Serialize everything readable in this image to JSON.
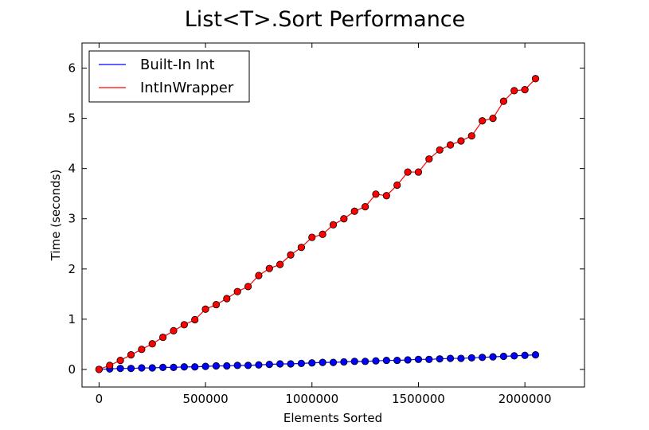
{
  "chart_data": {
    "type": "line",
    "title": "List<T>.Sort Performance",
    "xlabel": "Elements Sorted",
    "ylabel": "Time (seconds)",
    "xlim": [
      -80000,
      2280000
    ],
    "ylim": [
      -0.35,
      6.5
    ],
    "xticks": [
      0,
      500000,
      1000000,
      1500000,
      2000000
    ],
    "yticks": [
      0,
      1,
      2,
      3,
      4,
      5,
      6
    ],
    "grid": false,
    "legend_position": "top-left",
    "x": [
      0,
      50000,
      100000,
      150000,
      200000,
      250000,
      300000,
      350000,
      400000,
      450000,
      500000,
      550000,
      600000,
      650000,
      700000,
      750000,
      800000,
      850000,
      900000,
      950000,
      1000000,
      1050000,
      1100000,
      1150000,
      1200000,
      1250000,
      1300000,
      1350000,
      1400000,
      1450000,
      1500000,
      1550000,
      1600000,
      1650000,
      1700000,
      1750000,
      1800000,
      1850000,
      1900000,
      1950000,
      2000000,
      2050000
    ],
    "series": [
      {
        "name": "Built-In Int",
        "color": "#0000ff",
        "values": [
          0.0,
          0.01,
          0.02,
          0.02,
          0.03,
          0.03,
          0.04,
          0.04,
          0.05,
          0.05,
          0.06,
          0.07,
          0.07,
          0.08,
          0.08,
          0.09,
          0.1,
          0.11,
          0.11,
          0.12,
          0.13,
          0.14,
          0.14,
          0.15,
          0.16,
          0.16,
          0.17,
          0.18,
          0.18,
          0.19,
          0.2,
          0.2,
          0.21,
          0.22,
          0.22,
          0.23,
          0.24,
          0.25,
          0.26,
          0.27,
          0.28,
          0.29
        ]
      },
      {
        "name": "IntInWrapper",
        "color": "#ff0000",
        "values": [
          0.0,
          0.08,
          0.18,
          0.29,
          0.4,
          0.51,
          0.64,
          0.77,
          0.89,
          0.99,
          1.2,
          1.29,
          1.41,
          1.55,
          1.65,
          1.87,
          2.01,
          2.09,
          2.28,
          2.43,
          2.63,
          2.69,
          2.88,
          3.0,
          3.15,
          3.24,
          3.49,
          3.46,
          3.67,
          3.93,
          3.93,
          4.19,
          4.37,
          4.47,
          4.55,
          4.65,
          4.95,
          5.0,
          5.34,
          5.55,
          5.57,
          5.79
        ]
      }
    ]
  }
}
